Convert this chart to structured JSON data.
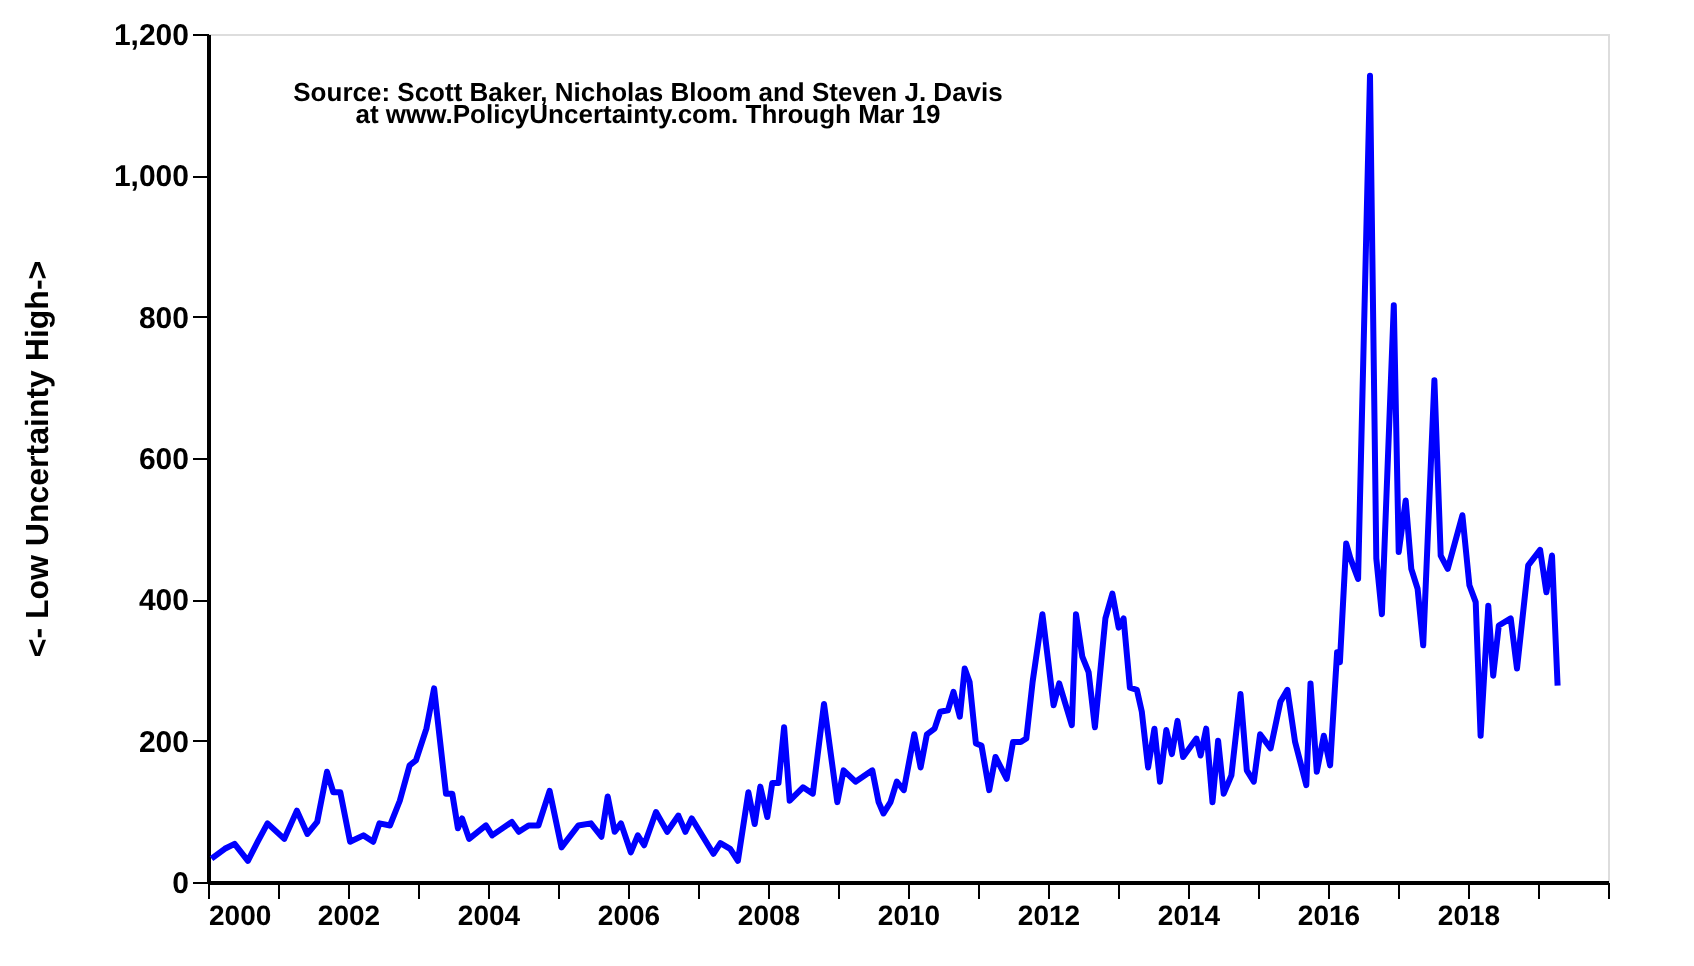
{
  "chart_data": {
    "type": "line",
    "ylabel": "<- Low     Uncertainty     High->",
    "annotations": [
      "Source: Scott Baker, Nicholas Bloom and Steven J. Davis",
      "at www.PolicyUncertainty.com. Through Mar 19"
    ],
    "x": [
      2000.05,
      2000.24,
      2000.38,
      2000.57,
      2000.71,
      2000.85,
      2001.09,
      2001.27,
      2001.42,
      2001.56,
      2001.7,
      2001.79,
      2001.89,
      2002.03,
      2002.22,
      2002.36,
      2002.45,
      2002.6,
      2002.74,
      2002.88,
      2002.97,
      2003.12,
      2003.23,
      2003.4,
      2003.49,
      2003.57,
      2003.63,
      2003.73,
      2003.97,
      2004.06,
      2004.34,
      2004.44,
      2004.58,
      2004.72,
      2004.88,
      2005.05,
      2005.29,
      2005.47,
      2005.62,
      2005.71,
      2005.81,
      2005.9,
      2006.04,
      2006.14,
      2006.23,
      2006.4,
      2006.56,
      2006.72,
      2006.82,
      2006.91,
      2007.22,
      2007.32,
      2007.46,
      2007.57,
      2007.72,
      2007.81,
      2007.89,
      2007.99,
      2008.06,
      2008.15,
      2008.23,
      2008.31,
      2008.5,
      2008.64,
      2008.8,
      2008.99,
      2009.08,
      2009.25,
      2009.49,
      2009.58,
      2009.65,
      2009.75,
      2009.84,
      2009.94,
      2010.09,
      2010.18,
      2010.27,
      2010.38,
      2010.46,
      2010.57,
      2010.65,
      2010.74,
      2010.81,
      2010.88,
      2010.97,
      2011.05,
      2011.16,
      2011.25,
      2011.41,
      2011.5,
      2011.61,
      2011.69,
      2011.78,
      2011.92,
      2012.08,
      2012.16,
      2012.34,
      2012.4,
      2012.49,
      2012.58,
      2012.67,
      2012.82,
      2012.92,
      2013.01,
      2013.08,
      2013.17,
      2013.27,
      2013.34,
      2013.43,
      2013.52,
      2013.6,
      2013.69,
      2013.77,
      2013.85,
      2013.93,
      2014.12,
      2014.18,
      2014.26,
      2014.35,
      2014.43,
      2014.51,
      2014.62,
      2014.75,
      2014.84,
      2014.94,
      2015.03,
      2015.18,
      2015.32,
      2015.42,
      2015.53,
      2015.69,
      2015.75,
      2015.84,
      2015.94,
      2016.03,
      2016.13,
      2016.17,
      2016.26,
      2016.32,
      2016.43,
      2016.6,
      2016.69,
      2016.77,
      2016.94,
      2017.01,
      2017.11,
      2017.19,
      2017.28,
      2017.36,
      2017.52,
      2017.61,
      2017.71,
      2017.92,
      2018.02,
      2018.11,
      2018.18,
      2018.29,
      2018.36,
      2018.44,
      2018.61,
      2018.7,
      2018.86,
      2019.03,
      2019.12,
      2019.2,
      2019.28
    ],
    "series": [
      {
        "color": "#0000ff",
        "values": [
          33,
          47,
          54,
          30,
          57,
          83,
          61,
          101,
          68,
          85,
          156,
          127,
          127,
          57,
          66,
          57,
          83,
          80,
          115,
          165,
          172,
          217,
          274,
          125,
          125,
          76,
          90,
          61,
          80,
          66,
          85,
          71,
          80,
          80,
          129,
          49,
          80,
          83,
          64,
          121,
          71,
          83,
          42,
          66,
          52,
          99,
          71,
          94,
          71,
          90,
          40,
          55,
          47,
          30,
          127,
          82,
          135,
          92,
          140,
          140,
          219,
          115,
          134,
          125,
          252,
          113,
          158,
          142,
          158,
          113,
          97,
          113,
          142,
          130,
          209,
          162,
          209,
          217,
          241,
          243,
          269,
          234,
          302,
          283,
          196,
          193,
          130,
          177,
          146,
          198,
          198,
          203,
          283,
          379,
          250,
          281,
          222,
          379,
          319,
          297,
          219,
          373,
          408,
          360,
          373,
          275,
          272,
          241,
          162,
          217,
          142,
          215,
          181,
          228,
          177,
          203,
          179,
          217,
          113,
          200,
          125,
          151,
          266,
          158,
          142,
          209,
          189,
          255,
          272,
          198,
          137,
          281,
          156,
          207,
          165,
          325,
          311,
          479,
          458,
          429,
          1141,
          458,
          379,
          816,
          467,
          540,
          443,
          415,
          335,
          710,
          462,
          443,
          519,
          420,
          396,
          207,
          391,
          292,
          363,
          373,
          302,
          448,
          470,
          410,
          462,
          278
        ]
      }
    ],
    "xlim": [
      2000,
      2020
    ],
    "xticks": [
      2000,
      {
        "value": 2001,
        "label": null
      },
      2002,
      {
        "value": 2003,
        "label": null
      },
      2004,
      {
        "value": 2005,
        "label": null
      },
      2006,
      {
        "value": 2007,
        "label": null
      },
      2008,
      {
        "value": 2009,
        "label": null
      },
      2010,
      {
        "value": 2011,
        "label": null
      },
      2012,
      {
        "value": 2013,
        "label": null
      },
      2014,
      {
        "value": 2015,
        "label": null
      },
      2016,
      {
        "value": 2017,
        "label": null
      },
      2018,
      {
        "value": 2019,
        "label": null
      },
      {
        "value": 2020,
        "label": null
      }
    ],
    "ylim": [
      0,
      1200
    ],
    "yticks": [
      0,
      200,
      400,
      600,
      800,
      {
        "value": 1000,
        "label": "1,000"
      },
      {
        "value": 1200,
        "label": "1,200"
      }
    ],
    "grid": false,
    "legend": false,
    "marker": "none",
    "line_style": "solid"
  }
}
